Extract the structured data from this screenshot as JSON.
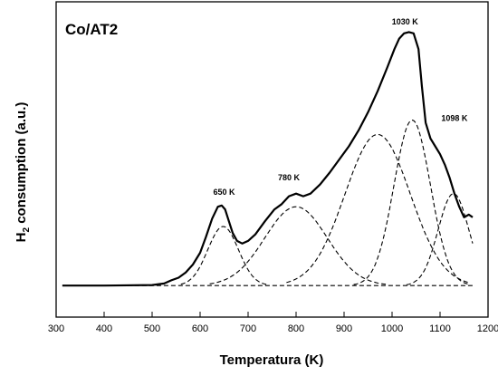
{
  "chart_data": {
    "type": "line",
    "panel_label": "Co/AT2",
    "xlabel": "Temperatura (K)",
    "ylabel_main": "H",
    "ylabel_sub": "2",
    "ylabel_rest": " consumption (a.u.)",
    "xlim": [
      300,
      1200
    ],
    "ylim": [
      -0.12,
      1.08
    ],
    "xticks": [
      300,
      400,
      500,
      600,
      700,
      800,
      900,
      1000,
      1100,
      1200
    ],
    "yticks_shown": false,
    "grid": false,
    "legend": "none",
    "annotations": [
      {
        "text": "650 K",
        "x": 650,
        "y": 0.345
      },
      {
        "text": "780 K",
        "x": 785,
        "y": 0.4
      },
      {
        "text": "1030 K",
        "x": 1027,
        "y": 0.993
      },
      {
        "text": "1098 K",
        "x": 1130,
        "y": 0.627
      }
    ],
    "series": [
      {
        "style": "solid",
        "x": [
          313,
          400,
          500,
          525,
          540,
          555,
          570,
          585,
          600,
          612,
          625,
          637,
          645,
          652,
          660,
          668,
          677,
          688,
          700,
          715,
          735,
          755,
          770,
          785,
          800,
          815,
          830,
          850,
          870,
          890,
          910,
          930,
          950,
          970,
          990,
          1005,
          1015,
          1025,
          1035,
          1045,
          1055,
          1062,
          1070,
          1080,
          1090,
          1100,
          1110,
          1120,
          1130,
          1140,
          1150,
          1160,
          1168
        ],
        "y": [
          0.0,
          0.0,
          0.002,
          0.008,
          0.02,
          0.03,
          0.05,
          0.08,
          0.125,
          0.185,
          0.255,
          0.3,
          0.305,
          0.29,
          0.245,
          0.2,
          0.17,
          0.16,
          0.17,
          0.195,
          0.245,
          0.29,
          0.31,
          0.34,
          0.35,
          0.34,
          0.35,
          0.385,
          0.43,
          0.48,
          0.53,
          0.59,
          0.66,
          0.74,
          0.83,
          0.9,
          0.94,
          0.96,
          0.965,
          0.96,
          0.9,
          0.76,
          0.62,
          0.56,
          0.53,
          0.5,
          0.46,
          0.41,
          0.35,
          0.3,
          0.26,
          0.27,
          0.26
        ]
      },
      {
        "style": "dashed",
        "x": [
          313,
          1168
        ],
        "y": [
          0.0,
          0.0
        ]
      },
      {
        "style": "dashed",
        "gaussian": {
          "center": 648,
          "height": 0.225,
          "sigma": 32,
          "baseline": 0.0
        },
        "range": [
          560,
          740
        ]
      },
      {
        "style": "dashed",
        "gaussian": {
          "center": 800,
          "height": 0.3,
          "sigma": 65,
          "baseline": 0.0
        },
        "range": [
          620,
          990
        ]
      },
      {
        "style": "dashed",
        "gaussian": {
          "center": 970,
          "height": 0.575,
          "sigma": 68,
          "baseline": 0.0
        },
        "range": [
          780,
          1160
        ]
      },
      {
        "style": "dashed",
        "gaussian": {
          "center": 1042,
          "height": 0.63,
          "sigma": 38,
          "baseline": 0.0
        },
        "range": [
          920,
          1165
        ]
      },
      {
        "style": "dashed",
        "gaussian": {
          "center": 1128,
          "height": 0.35,
          "sigma": 32,
          "baseline": 0.0
        },
        "range": [
          1030,
          1168
        ]
      }
    ]
  }
}
